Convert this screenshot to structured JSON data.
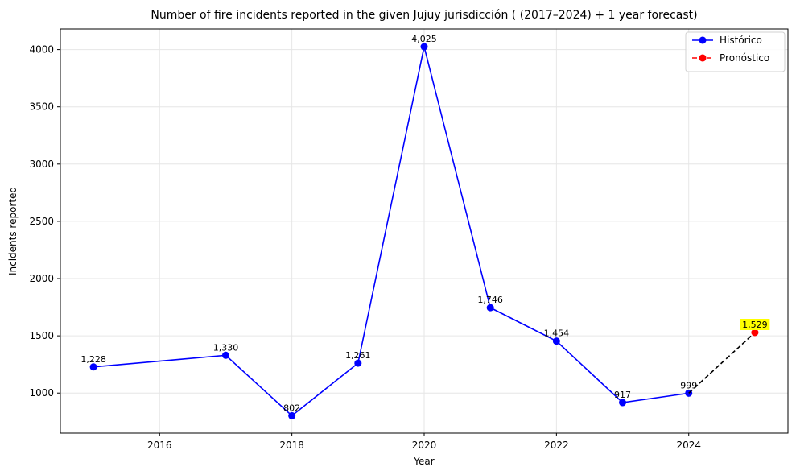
{
  "chart_data": {
    "type": "line",
    "title": "Number of fire incidents reported in the given Jujuy jurisdicción  ( (2017–2024)  + 1 year forecast)",
    "xlabel": "Year",
    "ylabel": "Incidents reported",
    "xlim": [
      2014.5,
      2025.5
    ],
    "ylim": [
      650,
      4180
    ],
    "x_ticks": [
      2016,
      2018,
      2020,
      2022,
      2024
    ],
    "y_ticks": [
      1000,
      1500,
      2000,
      2500,
      3000,
      3500,
      4000
    ],
    "grid": true,
    "legend_position": "top-right",
    "series": [
      {
        "name": "Histórico",
        "color": "#0000ff",
        "line_style": "solid",
        "marker": "circle",
        "points": [
          {
            "x": 2015,
            "y": 1228,
            "label": "1,228"
          },
          {
            "x": 2017,
            "y": 1330,
            "label": "1,330"
          },
          {
            "x": 2018,
            "y": 802,
            "label": "802"
          },
          {
            "x": 2019,
            "y": 1261,
            "label": "1,261"
          },
          {
            "x": 2020,
            "y": 4025,
            "label": "4,025"
          },
          {
            "x": 2021,
            "y": 1746,
            "label": "1,746"
          },
          {
            "x": 2022,
            "y": 1454,
            "label": "1,454"
          },
          {
            "x": 2023,
            "y": 917,
            "label": "917"
          },
          {
            "x": 2024,
            "y": 999,
            "label": "999"
          }
        ]
      },
      {
        "name": "Pronóstico",
        "color": "#ff0000",
        "line_color": "#000000",
        "line_style": "dashed",
        "marker": "circle",
        "label_highlight": "#ffff00",
        "points": [
          {
            "x": 2024,
            "y": 999,
            "label": ""
          },
          {
            "x": 2025,
            "y": 1529,
            "label": "1,529"
          }
        ]
      }
    ]
  }
}
